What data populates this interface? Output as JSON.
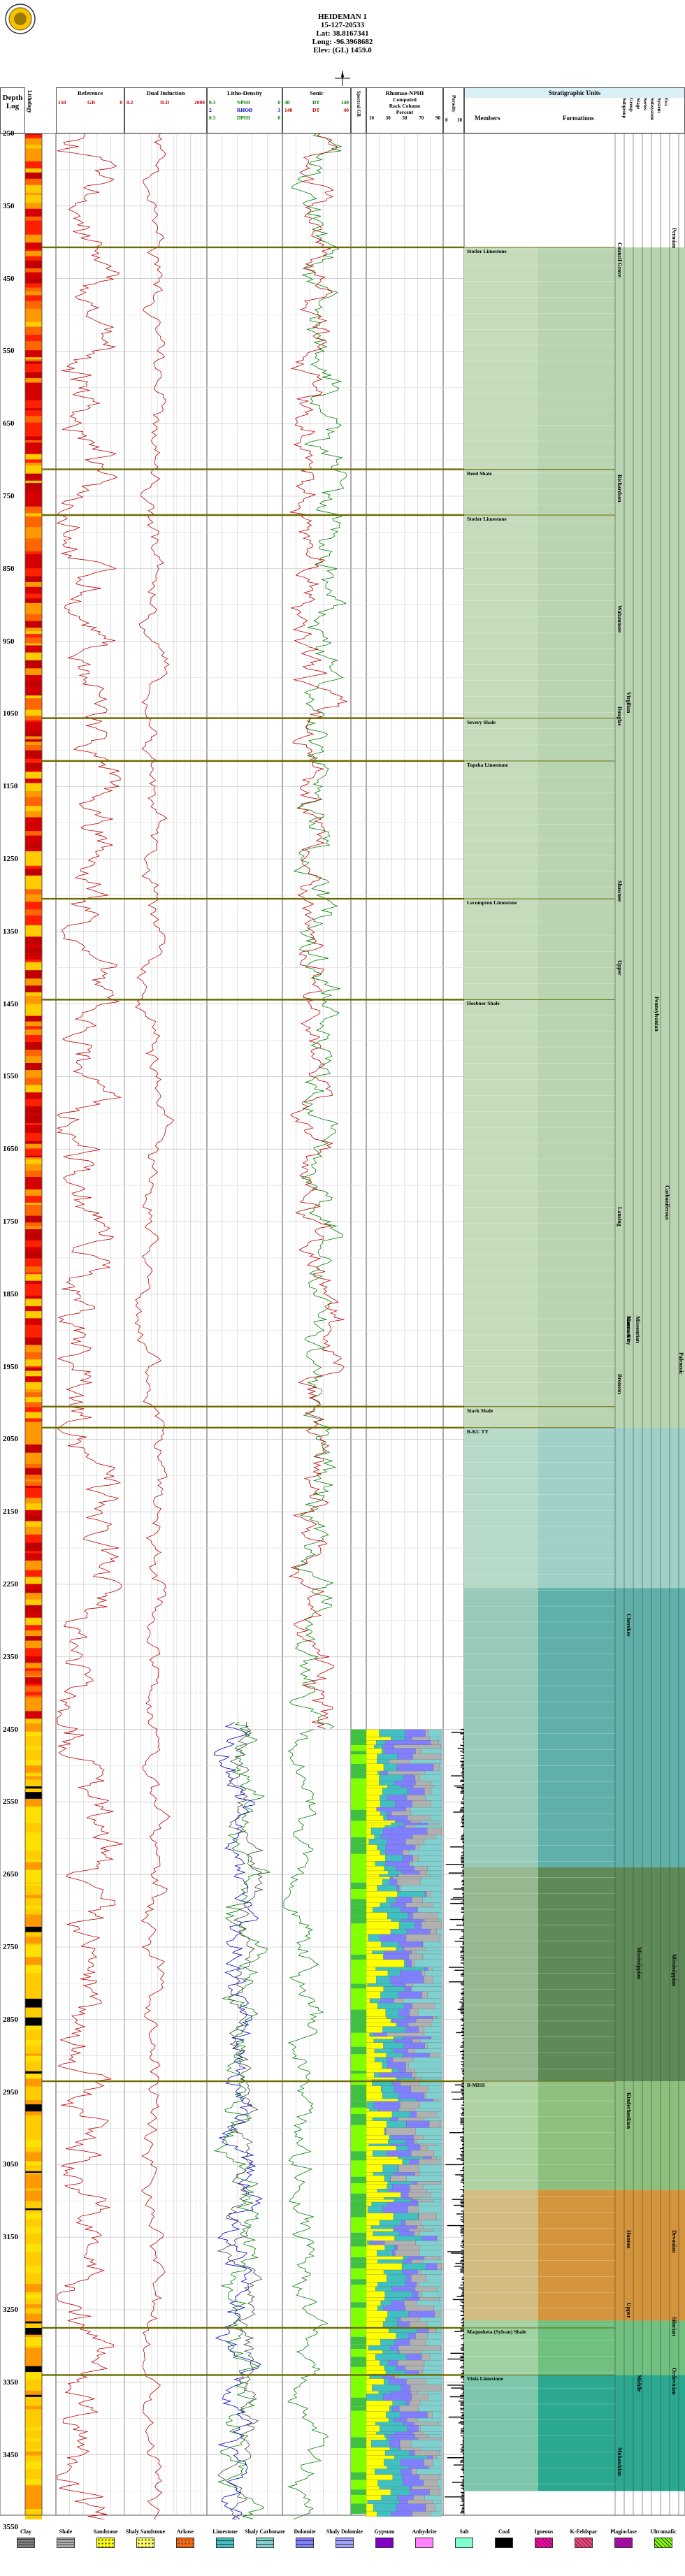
{
  "header": {
    "lines": [
      "HEIDEMAN 1",
      "15-127-20533",
      "Lat: 38.8167341",
      "Long: -96.3968682",
      "Elev: (GL) 1459.0"
    ]
  },
  "columns": {
    "depth": [
      "Depth",
      "Log"
    ],
    "lithology": "Lithology",
    "stratigraphic_units_title": "Stratigraphic Units",
    "members": "Members",
    "formations": "Formations",
    "hierarchy": [
      "Subgroup",
      "Group",
      "Stage",
      "Series",
      "Subsystem",
      "System",
      "Era"
    ]
  },
  "tracks": {
    "reference": {
      "title": "Reference",
      "curves": [
        {
          "name": "GR",
          "min": "150",
          "max": "0",
          "color": "#c00000"
        }
      ]
    },
    "induction": {
      "title": "Dual Induction",
      "curves": [
        {
          "name": "ILD",
          "min": "2000",
          "max": "0.2",
          "color": "#c00000"
        }
      ]
    },
    "litho_density": {
      "title": "Litho-Density",
      "curves": [
        {
          "name": "NPHI",
          "min": "0.3",
          "max": "0",
          "color": "#008000"
        },
        {
          "name": "RHOB",
          "min": "2",
          "max": "3",
          "color": "#0000c0"
        },
        {
          "name": "DPHI",
          "min": "0.3",
          "max": "0",
          "color": "#008000"
        }
      ]
    },
    "sonic": {
      "title": "Sonic",
      "curves": [
        {
          "name": "DT",
          "min": "40",
          "max": "140",
          "color": "#008000"
        },
        {
          "name": "DT",
          "min": "140",
          "max": "40",
          "color": "#c00000"
        }
      ]
    },
    "spectral": {
      "title": "Spectral GR"
    },
    "rhomaa": {
      "title": "Rhomaa-NPHI",
      "sub": [
        "Computed",
        "Rock Column"
      ],
      "scale": [
        "10",
        "30",
        "50",
        "70",
        "90"
      ],
      "unit": "Percent"
    },
    "porosity": {
      "title": "Porosity",
      "scale": [
        "0",
        "10"
      ]
    }
  },
  "depths": [
    "250",
    "350",
    "450",
    "550",
    "650",
    "750",
    "850",
    "950",
    "1050",
    "1150",
    "1250",
    "1350",
    "1450",
    "1550",
    "1650",
    "1750",
    "1850",
    "1950",
    "2050",
    "2150",
    "2250",
    "2350",
    "2450",
    "2550",
    "2650",
    "2750",
    "2850",
    "2950",
    "3050",
    "3150",
    "3250",
    "3350",
    "3450",
    "3550"
  ],
  "members": [
    {
      "label": "Stotler Limestone",
      "depth": 407
    },
    {
      "label": "Reed Shale",
      "depth": 713
    },
    {
      "label": "Stotler Limestone",
      "depth": 776
    },
    {
      "label": "Severy Shale",
      "depth": 1056
    },
    {
      "label": "Topeka Limestone",
      "depth": 1115
    },
    {
      "label": "Lecompton Limestone",
      "depth": 1305
    },
    {
      "label": "Heebner Shale",
      "depth": 1444
    },
    {
      "label": "Stark Shale",
      "depth": 2005
    },
    {
      "label": "B-KC TY",
      "depth": 2034
    },
    {
      "label": "B-MISS",
      "depth": 2935
    },
    {
      "label": "Maquoketa (Sylvan) Shale",
      "depth": 3275
    },
    {
      "label": "Viola Limestone",
      "depth": 3340
    }
  ],
  "units": {
    "formations": [
      "Council Grove",
      "Richardson",
      "Wabaunsee",
      "Virgilian",
      "Shawnee",
      "Douglas",
      "Lansing",
      "Kansas City",
      "Bronson",
      "Marmaton",
      "Cherokee",
      "Mississippian",
      "Kinderhookian",
      "Hunton",
      "Upper",
      "Middle",
      "Mohawkian",
      "Upper",
      "Missourian"
    ],
    "systems": [
      "Permian",
      "Pennsylvanian",
      "Carboniferous",
      "Mississippian",
      "Devonian",
      "Silurian",
      "Ordovician",
      "Paleozoic"
    ]
  },
  "legend": [
    {
      "label": "Clay",
      "color": "#808080",
      "pattern": "dash"
    },
    {
      "label": "Shale",
      "color": "#b0b0b0",
      "pattern": "dash"
    },
    {
      "label": "Sandstone",
      "color": "#ffff00",
      "pattern": "dots"
    },
    {
      "label": "Shaly Sandstone",
      "color": "#ffff60",
      "pattern": "dots"
    },
    {
      "label": "Arkose",
      "color": "#ff6600",
      "pattern": "dots"
    },
    {
      "label": "Limestone",
      "color": "#40c0c0",
      "pattern": "brick"
    },
    {
      "label": "Shaly Carbonate",
      "color": "#80d0d0",
      "pattern": "brick"
    },
    {
      "label": "Dolomite",
      "color": "#8080ff",
      "pattern": "brick"
    },
    {
      "label": "Shaly Dolomite",
      "color": "#a0a0ff",
      "pattern": "brick"
    },
    {
      "label": "Gypsum",
      "color": "#8000c0",
      "pattern": "solid"
    },
    {
      "label": "Anhydrite",
      "color": "#ff80ff",
      "pattern": "solid"
    },
    {
      "label": "Salt",
      "color": "#80ffcc",
      "pattern": "solid"
    },
    {
      "label": "Coal",
      "color": "#000000",
      "pattern": "solid"
    },
    {
      "label": "Igneous",
      "color": "#ff00aa",
      "pattern": "x"
    },
    {
      "label": "K-Feldspar",
      "color": "#ff4080",
      "pattern": "x"
    },
    {
      "label": "Plagioclase",
      "color": "#c000c0",
      "pattern": "x"
    },
    {
      "label": "Ultramafic",
      "color": "#80ff00",
      "pattern": "x"
    }
  ]
}
